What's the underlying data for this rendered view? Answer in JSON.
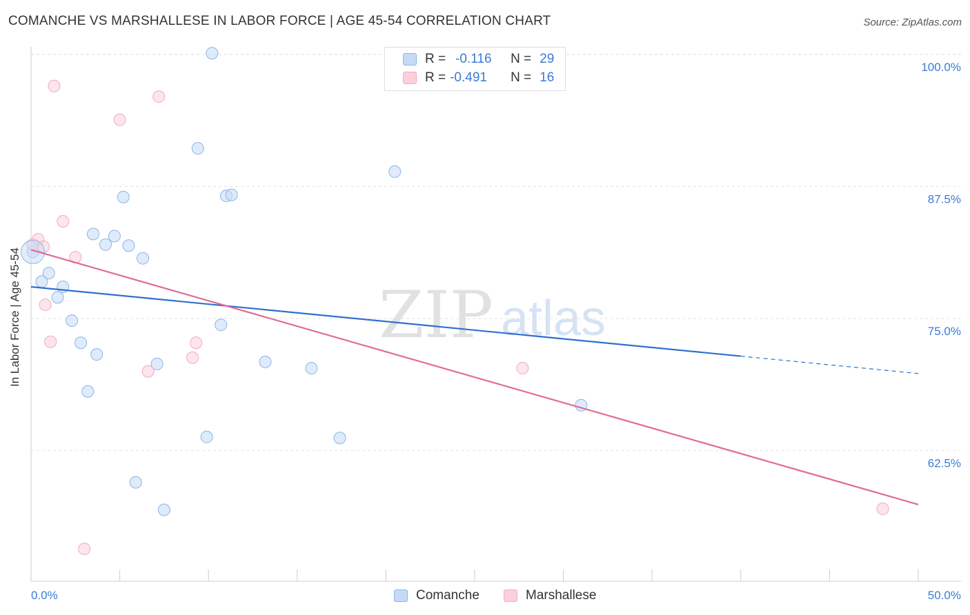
{
  "title": "COMANCHE VS MARSHALLESE IN LABOR FORCE | AGE 45-54 CORRELATION CHART",
  "source": "Source: ZipAtlas.com",
  "watermark": {
    "zip": "ZIP",
    "atlas": "atlas"
  },
  "legend_stats": {
    "comanche": {
      "r_label": "R =",
      "r_value": "-0.116",
      "n_label": "N =",
      "n_value": "29"
    },
    "marshallese": {
      "r_label": "R =",
      "r_value": "-0.491",
      "n_label": "N =",
      "n_value": "16"
    }
  },
  "chart_data": {
    "type": "scatter",
    "title": "COMANCHE VS MARSHALLESE IN LABOR FORCE | AGE 45-54 CORRELATION CHART",
    "xlabel": "",
    "ylabel": "In Labor Force | Age 45-54",
    "xlim": [
      0,
      50
    ],
    "ylim": [
      51.5,
      102
    ],
    "x_tick_labels": [
      "0.0%",
      "50.0%"
    ],
    "y_ticks": [
      62.5,
      75.0,
      87.5,
      100.0
    ],
    "y_tick_labels": [
      "62.5%",
      "75.0%",
      "87.5%",
      "100.0%"
    ],
    "grid": true,
    "legend": "bottom-center",
    "series": [
      {
        "name": "Comanche",
        "color": "#8ab4e8",
        "line_color": "#2f6fcf",
        "r": -0.116,
        "n": 29,
        "trend": {
          "x_start": 0,
          "y_start": 78.0,
          "x_solid_end": 40,
          "x_end": 50,
          "y_end": 69.8
        },
        "points": [
          {
            "x": 0.1,
            "y": 81.3
          },
          {
            "x": 0.6,
            "y": 78.5
          },
          {
            "x": 1.0,
            "y": 79.3
          },
          {
            "x": 1.5,
            "y": 77.0
          },
          {
            "x": 1.8,
            "y": 78.0
          },
          {
            "x": 2.3,
            "y": 74.8
          },
          {
            "x": 2.8,
            "y": 72.7
          },
          {
            "x": 3.2,
            "y": 68.1
          },
          {
            "x": 3.5,
            "y": 83.0
          },
          {
            "x": 3.7,
            "y": 71.6
          },
          {
            "x": 4.2,
            "y": 82.0
          },
          {
            "x": 4.7,
            "y": 82.8
          },
          {
            "x": 5.2,
            "y": 86.5
          },
          {
            "x": 5.5,
            "y": 81.9
          },
          {
            "x": 5.9,
            "y": 59.5
          },
          {
            "x": 6.3,
            "y": 80.7
          },
          {
            "x": 7.1,
            "y": 70.7
          },
          {
            "x": 7.5,
            "y": 56.9
          },
          {
            "x": 9.4,
            "y": 91.1
          },
          {
            "x": 9.9,
            "y": 63.8
          },
          {
            "x": 10.2,
            "y": 100.1
          },
          {
            "x": 10.7,
            "y": 74.4
          },
          {
            "x": 11.0,
            "y": 86.6
          },
          {
            "x": 11.3,
            "y": 86.7
          },
          {
            "x": 13.2,
            "y": 70.9
          },
          {
            "x": 15.8,
            "y": 70.3
          },
          {
            "x": 17.4,
            "y": 63.7
          },
          {
            "x": 20.5,
            "y": 88.9
          },
          {
            "x": 31.0,
            "y": 66.8
          }
        ]
      },
      {
        "name": "Marshallese",
        "color": "#f4a7c0",
        "line_color": "#e06b98",
        "r": -0.491,
        "n": 16,
        "trend": {
          "x_start": 0,
          "y_start": 81.5,
          "x_end": 50,
          "y_end": 57.4
        },
        "points": [
          {
            "x": 0.1,
            "y": 82.0
          },
          {
            "x": 0.4,
            "y": 82.5
          },
          {
            "x": 0.7,
            "y": 81.8
          },
          {
            "x": 0.8,
            "y": 76.3
          },
          {
            "x": 1.1,
            "y": 72.8
          },
          {
            "x": 1.3,
            "y": 97.0
          },
          {
            "x": 1.8,
            "y": 84.2
          },
          {
            "x": 2.5,
            "y": 80.8
          },
          {
            "x": 3.0,
            "y": 53.2
          },
          {
            "x": 5.0,
            "y": 93.8
          },
          {
            "x": 6.6,
            "y": 70.0
          },
          {
            "x": 7.2,
            "y": 96.0
          },
          {
            "x": 9.1,
            "y": 71.3
          },
          {
            "x": 9.3,
            "y": 72.7
          },
          {
            "x": 27.7,
            "y": 70.3
          },
          {
            "x": 48.0,
            "y": 57.0
          }
        ]
      }
    ]
  }
}
